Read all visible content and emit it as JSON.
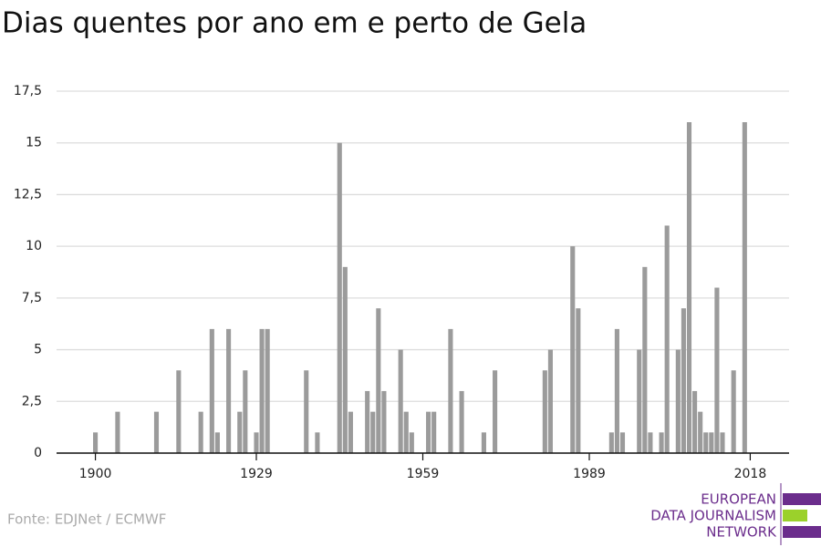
{
  "chart_data": {
    "type": "bar",
    "title": "Dias quentes por ano em e perto de Gela",
    "x": [
      1900,
      1904,
      1911,
      1915,
      1919,
      1921,
      1922,
      1924,
      1926,
      1927,
      1929,
      1930,
      1931,
      1938,
      1940,
      1944,
      1945,
      1946,
      1949,
      1950,
      1951,
      1952,
      1955,
      1956,
      1957,
      1960,
      1961,
      1964,
      1966,
      1970,
      1972,
      1981,
      1982,
      1986,
      1987,
      1993,
      1994,
      1995,
      1998,
      1999,
      2000,
      2002,
      2003,
      2005,
      2006,
      2007,
      2008,
      2009,
      2010,
      2011,
      2012,
      2013,
      2015,
      2017
    ],
    "values": [
      1,
      2,
      2,
      4,
      2,
      6,
      1,
      6,
      2,
      4,
      1,
      6,
      6,
      4,
      1,
      15,
      9,
      2,
      3,
      2,
      7,
      3,
      5,
      2,
      1,
      2,
      2,
      6,
      3,
      1,
      4,
      4,
      5,
      10,
      7,
      1,
      6,
      1,
      5,
      9,
      1,
      1,
      11,
      5,
      7,
      16,
      3,
      2,
      1,
      1,
      8,
      1,
      4,
      16
    ],
    "color": "#9b9b9b",
    "xlim": [
      1893,
      2025
    ],
    "xticks": [
      1900,
      1929,
      1959,
      1989,
      2018
    ],
    "ylim": [
      0,
      17.5
    ],
    "yticks": [
      0,
      {
        "value": 2.5,
        "label": "2,5"
      },
      5,
      {
        "value": 7.5,
        "label": "7,5"
      },
      10,
      {
        "value": 12.5,
        "label": "12,5"
      },
      15,
      {
        "value": 17.5,
        "label": "17,5"
      }
    ],
    "grid": true,
    "source": "Fonte: EDJNet / ECMWF",
    "logo": [
      "EUROPEAN",
      "DATA JOURNALISM",
      "NETWORK"
    ]
  }
}
